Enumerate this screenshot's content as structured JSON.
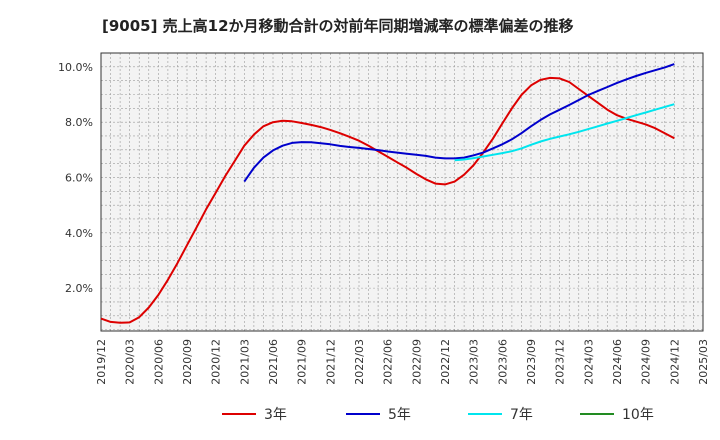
{
  "chart_data": {
    "type": "line",
    "title": "[9005]  売上高12か月移動合計の対前年同期増減率の標準偏差の推移",
    "xlabel": "",
    "ylabel": "",
    "x_ticks": [
      "2019/12",
      "2020/03",
      "2020/06",
      "2020/09",
      "2020/12",
      "2021/03",
      "2021/06",
      "2021/09",
      "2021/12",
      "2022/03",
      "2022/06",
      "2022/09",
      "2022/12",
      "2023/03",
      "2023/06",
      "2023/09",
      "2023/12",
      "2024/03",
      "2024/06",
      "2024/09",
      "2024/12",
      "2025/03"
    ],
    "y_ticks": [
      "2.0%",
      "4.0%",
      "6.0%",
      "8.0%",
      "10.0%"
    ],
    "xlim": [
      "2019/12",
      "2025/03"
    ],
    "ylim": [
      0.45,
      10.5
    ],
    "grid": true,
    "legend_position": "bottom",
    "series": [
      {
        "name": "3年",
        "color": "#dd0000",
        "x": [
          "2019/12",
          "2020/01",
          "2020/02",
          "2020/03",
          "2020/04",
          "2020/05",
          "2020/06",
          "2020/07",
          "2020/08",
          "2020/09",
          "2020/10",
          "2020/11",
          "2020/12",
          "2021/01",
          "2021/02",
          "2021/03",
          "2021/04",
          "2021/05",
          "2021/06",
          "2021/07",
          "2021/08",
          "2021/09",
          "2021/10",
          "2021/11",
          "2021/12",
          "2022/01",
          "2022/02",
          "2022/03",
          "2022/04",
          "2022/05",
          "2022/06",
          "2022/07",
          "2022/08",
          "2022/09",
          "2022/10",
          "2022/11",
          "2022/12",
          "2023/01",
          "2023/02",
          "2023/03",
          "2023/04",
          "2023/05",
          "2023/06",
          "2023/07",
          "2023/08",
          "2023/09",
          "2023/10",
          "2023/11",
          "2023/12",
          "2024/01",
          "2024/02",
          "2024/03",
          "2024/04",
          "2024/05",
          "2024/06",
          "2024/07",
          "2024/08",
          "2024/09",
          "2024/10",
          "2024/11",
          "2024/12"
        ],
        "values": [
          0.9,
          0.78,
          0.75,
          0.76,
          0.95,
          1.3,
          1.75,
          2.3,
          2.9,
          3.55,
          4.2,
          4.85,
          5.45,
          6.05,
          6.6,
          7.15,
          7.55,
          7.85,
          8.0,
          8.05,
          8.03,
          7.97,
          7.9,
          7.82,
          7.72,
          7.6,
          7.47,
          7.33,
          7.15,
          6.95,
          6.75,
          6.55,
          6.35,
          6.13,
          5.93,
          5.78,
          5.75,
          5.85,
          6.1,
          6.45,
          6.9,
          7.4,
          7.95,
          8.5,
          8.98,
          9.33,
          9.53,
          9.6,
          9.58,
          9.45,
          9.2,
          8.95,
          8.7,
          8.45,
          8.25,
          8.12,
          8.02,
          7.92,
          7.78,
          7.6,
          7.42
        ]
      },
      {
        "name": "5年",
        "color": "#0000cc",
        "x": [
          "2021/03",
          "2021/04",
          "2021/05",
          "2021/06",
          "2021/07",
          "2021/08",
          "2021/09",
          "2021/10",
          "2021/11",
          "2021/12",
          "2022/01",
          "2022/02",
          "2022/03",
          "2022/04",
          "2022/05",
          "2022/06",
          "2022/07",
          "2022/08",
          "2022/09",
          "2022/10",
          "2022/11",
          "2022/12",
          "2023/01",
          "2023/02",
          "2023/03",
          "2023/04",
          "2023/05",
          "2023/06",
          "2023/07",
          "2023/08",
          "2023/09",
          "2023/10",
          "2023/11",
          "2023/12",
          "2024/01",
          "2024/02",
          "2024/03",
          "2024/04",
          "2024/05",
          "2024/06",
          "2024/07",
          "2024/08",
          "2024/09",
          "2024/10",
          "2024/11",
          "2024/12"
        ],
        "values": [
          5.85,
          6.35,
          6.72,
          6.98,
          7.15,
          7.25,
          7.28,
          7.27,
          7.24,
          7.2,
          7.14,
          7.1,
          7.07,
          7.03,
          6.99,
          6.94,
          6.9,
          6.86,
          6.82,
          6.78,
          6.72,
          6.69,
          6.69,
          6.72,
          6.8,
          6.9,
          7.05,
          7.2,
          7.38,
          7.6,
          7.85,
          8.08,
          8.28,
          8.45,
          8.62,
          8.8,
          8.98,
          9.13,
          9.27,
          9.42,
          9.55,
          9.67,
          9.78,
          9.88,
          9.98,
          10.1
        ]
      },
      {
        "name": "7年",
        "color": "#00e5ee",
        "x": [
          "2023/01",
          "2023/02",
          "2023/03",
          "2023/04",
          "2023/05",
          "2023/06",
          "2023/07",
          "2023/08",
          "2023/09",
          "2023/10",
          "2023/11",
          "2023/12",
          "2024/01",
          "2024/02",
          "2024/03",
          "2024/04",
          "2024/05",
          "2024/06",
          "2024/07",
          "2024/08",
          "2024/09",
          "2024/10",
          "2024/11",
          "2024/12"
        ],
        "values": [
          6.62,
          6.65,
          6.7,
          6.76,
          6.82,
          6.88,
          6.95,
          7.05,
          7.18,
          7.3,
          7.4,
          7.48,
          7.56,
          7.65,
          7.75,
          7.85,
          7.95,
          8.05,
          8.15,
          8.25,
          8.35,
          8.45,
          8.55,
          8.65
        ]
      },
      {
        "name": "10年",
        "color": "#228b22",
        "x": [],
        "values": []
      }
    ]
  }
}
